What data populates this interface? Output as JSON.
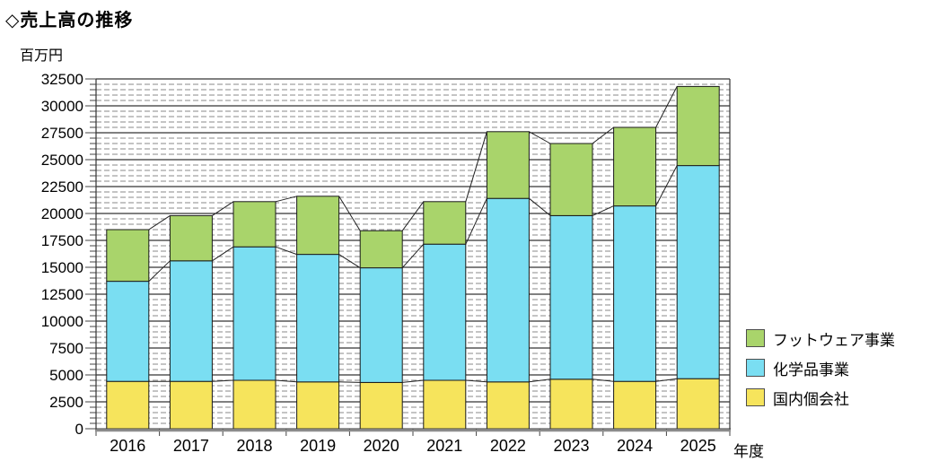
{
  "title": "◇売上高の推移",
  "y_unit_label": "百万円",
  "x_axis_label": "年度",
  "chart_data": {
    "type": "bar",
    "stacked": true,
    "title": "売上高の推移",
    "ylabel": "百万円",
    "xlabel": "年度",
    "categories": [
      "2016",
      "2017",
      "2018",
      "2019",
      "2020",
      "2021",
      "2022",
      "2023",
      "2024",
      "2025"
    ],
    "series": [
      {
        "name": "国内個会社",
        "color": "#F6E45C",
        "values": [
          4400,
          4400,
          4500,
          4350,
          4300,
          4500,
          4350,
          4600,
          4400,
          4650
        ]
      },
      {
        "name": "化学品事業",
        "color": "#7ADEF2",
        "values": [
          9300,
          11200,
          12400,
          11850,
          10650,
          12650,
          17050,
          15200,
          16300,
          19800
        ]
      },
      {
        "name": "フットウェア事業",
        "color": "#A9D46B",
        "values": [
          4800,
          4200,
          4200,
          5400,
          3450,
          3950,
          6200,
          6700,
          7300,
          7350
        ]
      }
    ],
    "totals": [
      18500,
      19800,
      21100,
      21600,
      18400,
      21100,
      27600,
      26500,
      28000,
      31800
    ],
    "ylim": [
      0,
      32500
    ],
    "y_major_step": 2500,
    "y_minor_step": 500,
    "y_ticks": [
      0,
      2500,
      5000,
      7500,
      10000,
      12500,
      15000,
      17500,
      20000,
      22500,
      25000,
      27500,
      30000,
      32500
    ],
    "grid": "major solid black, minor dashed gray, series connector lines between bars",
    "legend_position": "right"
  },
  "legend": {
    "items": [
      {
        "label": "フットウェア事業",
        "color": "#A9D46B"
      },
      {
        "label": "化学品事業",
        "color": "#7ADEF2"
      },
      {
        "label": "国内個会社",
        "color": "#F6E45C"
      }
    ]
  }
}
